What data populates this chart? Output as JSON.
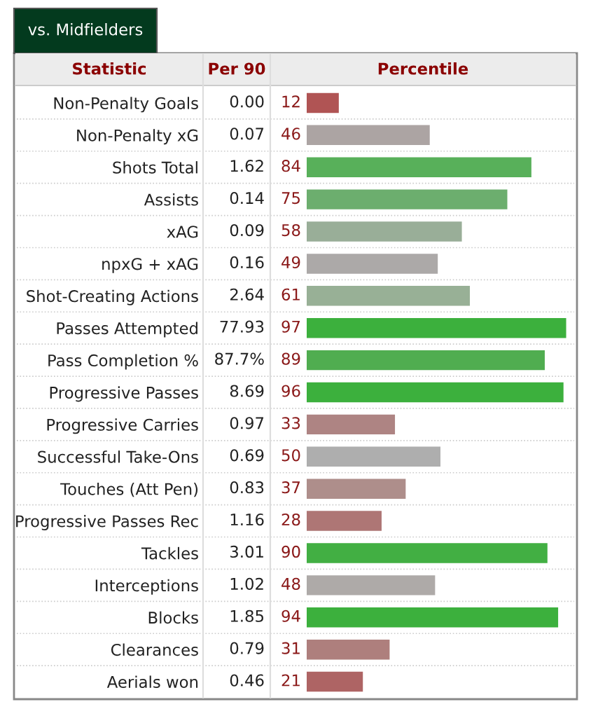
{
  "chart_data": {
    "type": "bar",
    "orientation": "horizontal",
    "title": "vs. Midfielders",
    "xlabel": "Percentile",
    "categories": [
      "Non-Penalty Goals",
      "Non-Penalty xG",
      "Shots Total",
      "Assists",
      "xAG",
      "npxG + xAG",
      "Shot-Creating Actions",
      "Passes Attempted",
      "Pass Completion %",
      "Progressive Passes",
      "Progressive Carries",
      "Successful Take-Ons",
      "Touches (Att Pen)",
      "Progressive Passes Rec",
      "Tackles",
      "Interceptions",
      "Blocks",
      "Clearances",
      "Aerials won"
    ],
    "values": [
      12,
      46,
      84,
      75,
      58,
      49,
      61,
      97,
      89,
      96,
      33,
      50,
      37,
      28,
      90,
      48,
      94,
      31,
      21
    ],
    "colors": [
      "#b05454",
      "#aca4a3",
      "#58b05a",
      "#6cae6e",
      "#99ae98",
      "#aca9a8",
      "#98b096",
      "#3cb03d",
      "#50ad50",
      "#3cb03d",
      "#ae8483",
      "#aeaeae",
      "#ae8e8b",
      "#ae7675",
      "#42af43",
      "#aeaaa8",
      "#3cb03d",
      "#ae7f7d",
      "#ae6464"
    ],
    "xlim": [
      0,
      100
    ],
    "data_labels": true,
    "grid": "y",
    "tick_labels": "y",
    "annotations": [
      "Statistic",
      "Per 90",
      "0.00",
      "0.07",
      "1.62",
      "0.14",
      "0.09",
      "0.16",
      "2.64",
      "77.93",
      "87.7%",
      "8.69",
      "0.97",
      "0.69",
      "0.83",
      "1.16",
      "3.01",
      "1.02",
      "1.85",
      "0.79",
      "0.46"
    ]
  }
}
